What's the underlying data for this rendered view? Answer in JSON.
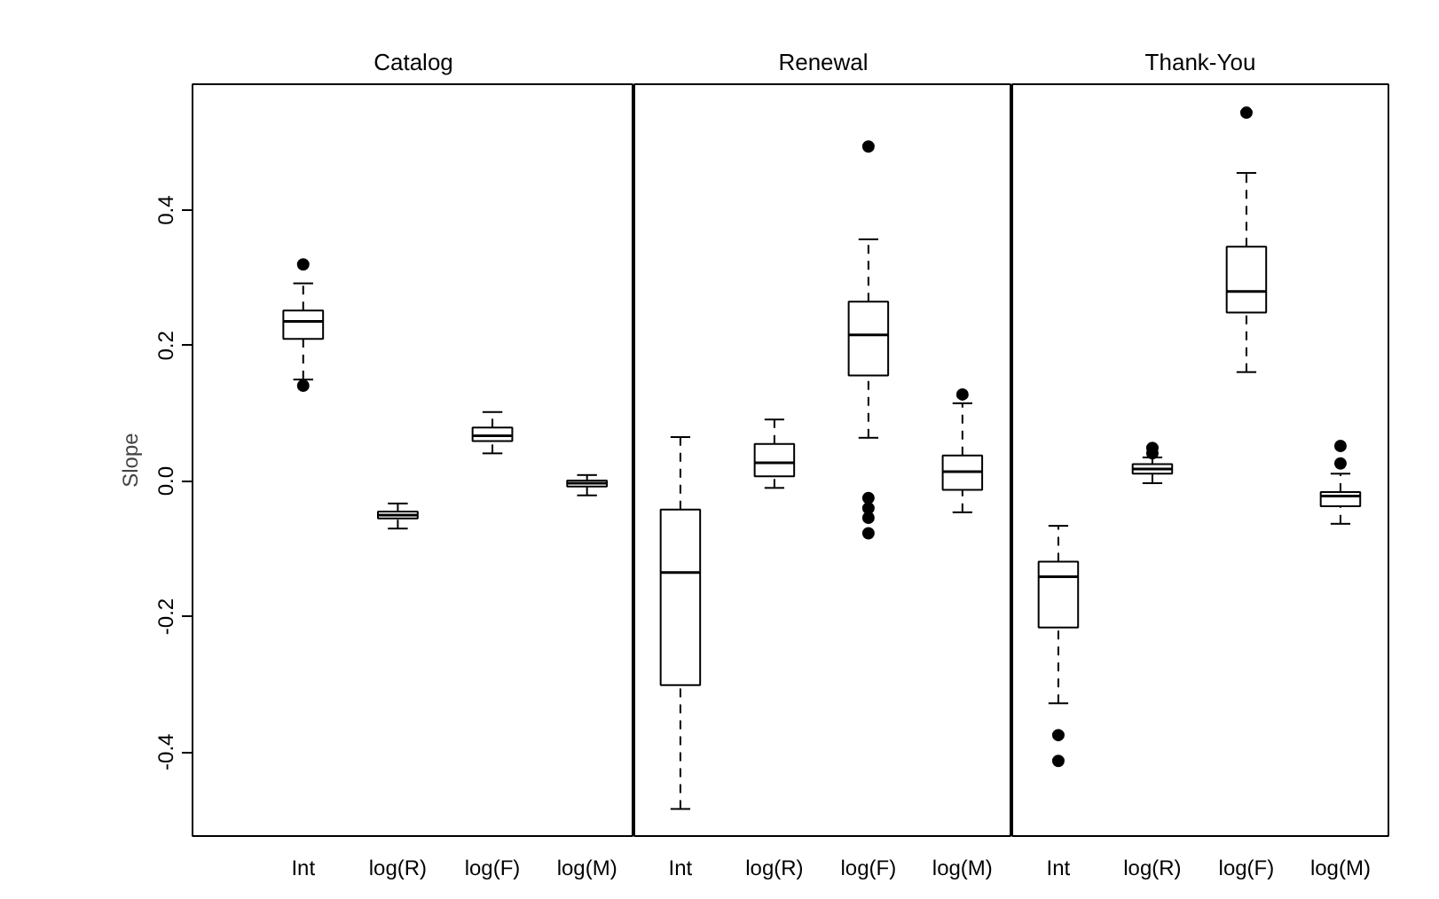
{
  "chart_data": [
    {
      "type": "box",
      "title": "Catalog",
      "ylabel": "Slope",
      "categories": [
        "Int",
        "log(R)",
        "log(F)",
        "log(M)"
      ],
      "boxes": [
        {
          "low": 0.15,
          "q1": 0.21,
          "median": 0.236,
          "q3": 0.252,
          "high": 0.292,
          "outliers": [
            0.32,
            0.141
          ]
        },
        {
          "low": -0.07,
          "q1": -0.055,
          "median": -0.05,
          "q3": -0.045,
          "high": -0.033
        },
        {
          "low": 0.041,
          "q1": 0.059,
          "median": 0.067,
          "q3": 0.079,
          "high": 0.102
        },
        {
          "low": -0.021,
          "q1": -0.008,
          "median": -0.003,
          "q3": 0.001,
          "high": 0.009
        }
      ],
      "ylim": [
        -0.524,
        0.586
      ],
      "yticks": [
        -0.4,
        -0.2,
        {
          "value": 0,
          "label": "0.0"
        },
        0.2,
        0.4
      ],
      "grid": false
    },
    {
      "type": "box",
      "title": "Renewal",
      "categories": [
        "Int",
        "log(R)",
        "log(F)",
        "log(M)"
      ],
      "boxes": [
        {
          "low": -0.484,
          "q1": -0.301,
          "median": -0.135,
          "q3": -0.042,
          "high": 0.065
        },
        {
          "low": -0.01,
          "q1": 0.007,
          "median": 0.027,
          "q3": 0.055,
          "high": 0.091
        },
        {
          "low": 0.064,
          "q1": 0.156,
          "median": 0.216,
          "q3": 0.265,
          "high": 0.357,
          "outliers": [
            0.494,
            -0.025,
            -0.04,
            -0.054,
            -0.077
          ]
        },
        {
          "low": -0.046,
          "q1": -0.013,
          "median": 0.014,
          "q3": 0.038,
          "high": 0.115,
          "outliers": [
            0.128
          ]
        }
      ],
      "ylim": [
        -0.524,
        0.586
      ],
      "tick_labels": "x",
      "grid": false
    },
    {
      "type": "box",
      "title": "Thank-You",
      "categories": [
        "Int",
        "log(R)",
        "log(F)",
        "log(M)"
      ],
      "boxes": [
        {
          "low": -0.328,
          "q1": -0.216,
          "median": -0.141,
          "q3": -0.119,
          "high": -0.066,
          "outliers": [
            -0.375,
            -0.413
          ]
        },
        {
          "low": -0.003,
          "q1": 0.011,
          "median": 0.018,
          "q3": 0.025,
          "high": 0.035,
          "outliers": [
            0.049,
            0.041
          ]
        },
        {
          "low": 0.161,
          "q1": 0.249,
          "median": 0.28,
          "q3": 0.346,
          "high": 0.455,
          "outliers": [
            0.544
          ]
        },
        {
          "low": -0.063,
          "q1": -0.037,
          "median": -0.022,
          "q3": -0.016,
          "high": 0.011,
          "outliers": [
            0.052,
            0.026
          ]
        }
      ],
      "ylim": [
        -0.524,
        0.586
      ],
      "tick_labels": "x",
      "grid": false
    }
  ]
}
